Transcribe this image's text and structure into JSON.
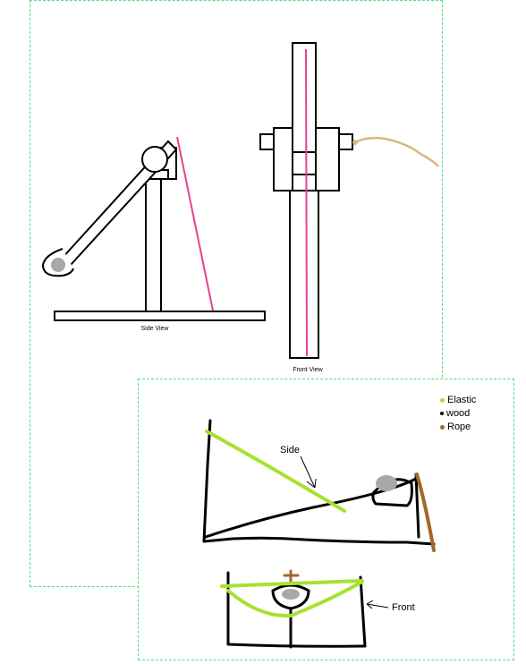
{
  "top_sketch": {
    "side_view_caption": "Side View",
    "front_view_caption": "Front View"
  },
  "bottom_sketch": {
    "legend": [
      {
        "label": "Elastic",
        "color": "#a6e22e"
      },
      {
        "label": "wood",
        "color": "#000000"
      },
      {
        "label": "Rope",
        "color": "#a0682a"
      }
    ],
    "side_label": "Side",
    "front_label": "Front"
  },
  "colors": {
    "panel_border": "#4ee07a",
    "pink_line": "#e8408f",
    "rope_tan": "#d9b97a",
    "ball_gray": "#a8a8a8",
    "elastic_green": "#a6e22e",
    "rope_brown": "#a0682a"
  }
}
